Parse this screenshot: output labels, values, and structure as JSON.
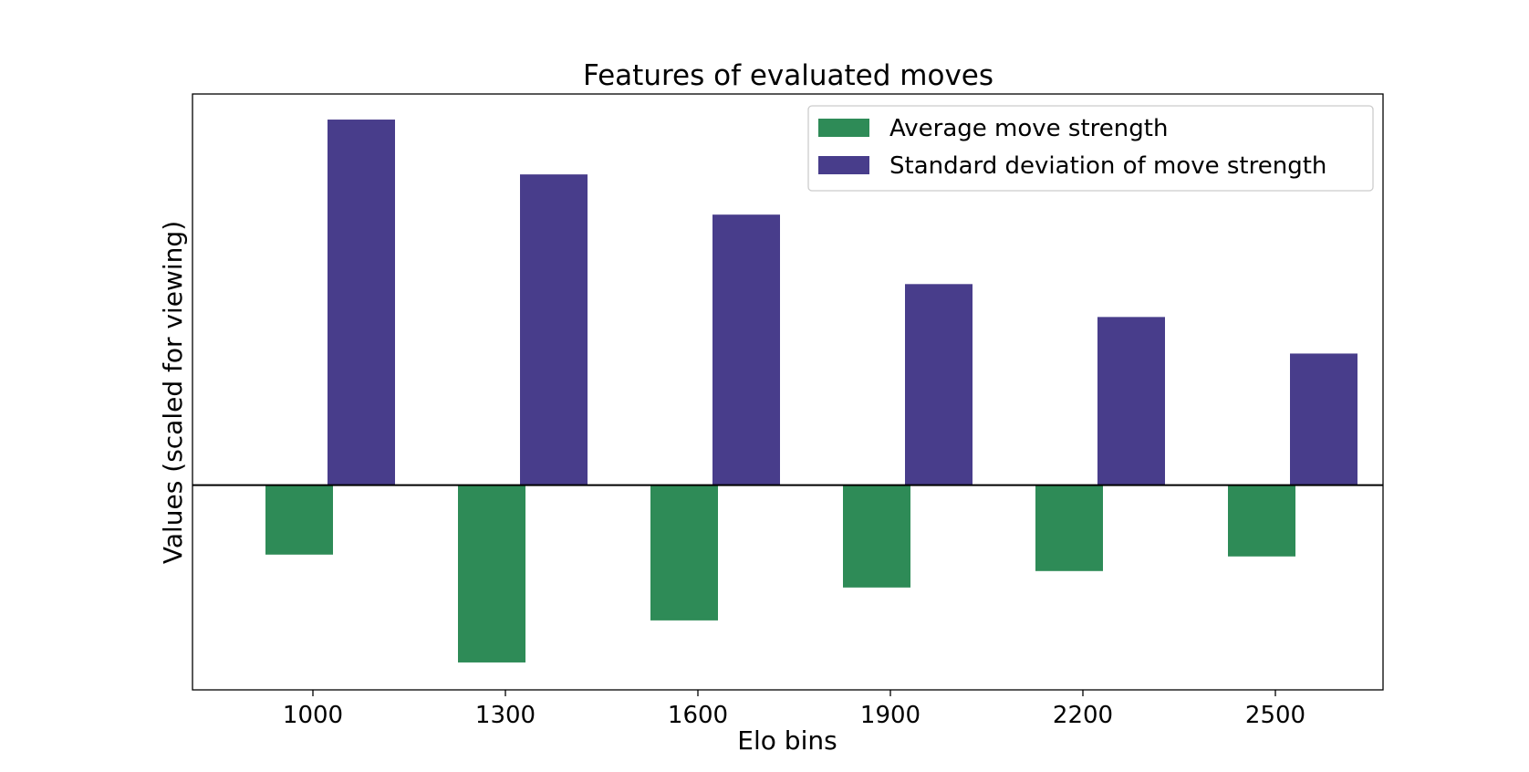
{
  "chart_data": {
    "type": "bar",
    "title": "Features of evaluated moves",
    "xlabel": "Elo bins",
    "ylabel": "Values (scaled for viewing)",
    "categories": [
      "1000",
      "1300",
      "1600",
      "1900",
      "2200",
      "2500"
    ],
    "series": [
      {
        "name": "Average move strength",
        "color": "#2e8b57",
        "values": [
          -0.19,
          -0.485,
          -0.37,
          -0.28,
          -0.235,
          -0.195
        ]
      },
      {
        "name": "Standard deviation of move strength",
        "color": "#483d8b",
        "values": [
          1.0,
          0.85,
          0.74,
          0.55,
          0.46,
          0.36
        ]
      }
    ],
    "ylim": [
      -0.56,
      1.07
    ],
    "y_ticks_shown": false,
    "grid": false,
    "legend_position": "top-right",
    "zero_line": true
  }
}
